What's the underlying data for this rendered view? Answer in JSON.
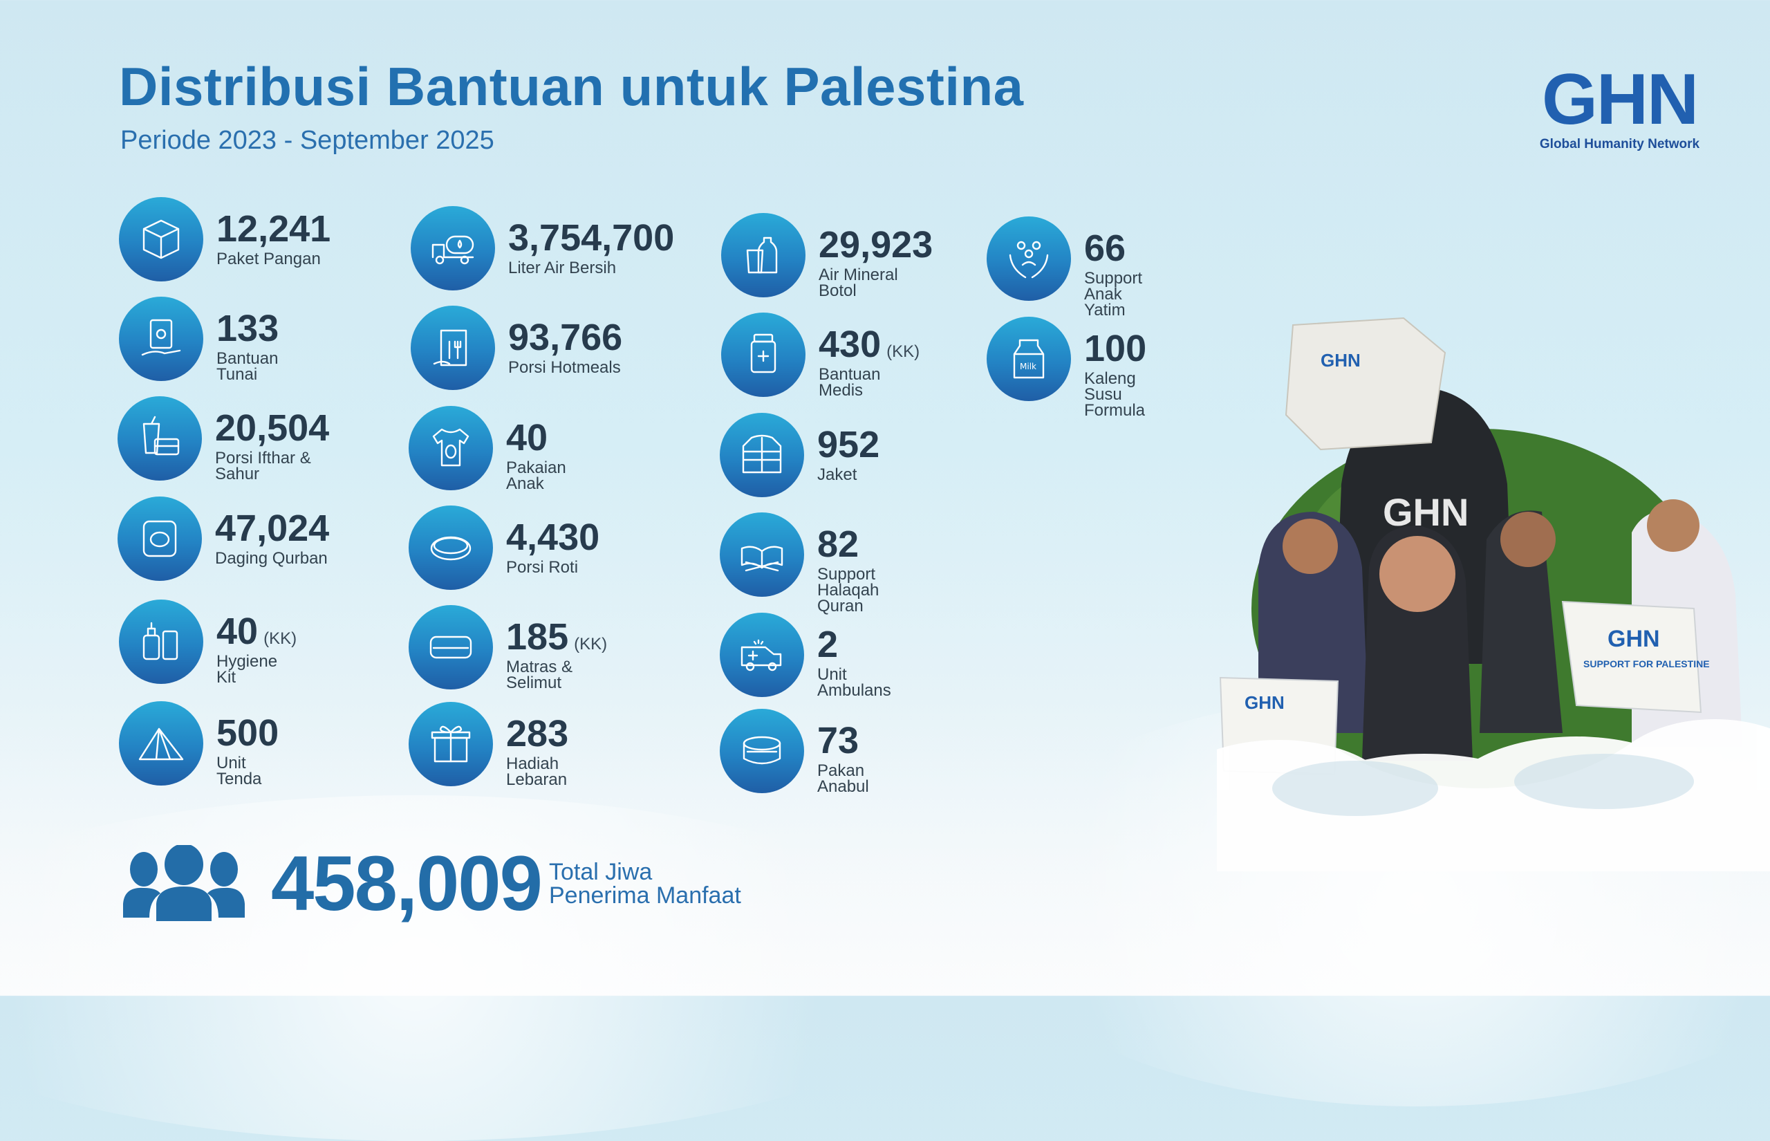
{
  "header": {
    "title": "Distribusi Bantuan untuk Palestina",
    "subtitle": "Periode 2023 - September 2025"
  },
  "logo": {
    "mark": "GHN",
    "name": "Global Humanity Network"
  },
  "colors": {
    "title": "#2270b0",
    "number": "#273b4d",
    "icon_top": "#2aaad8",
    "icon_bottom": "#1f5ea6"
  },
  "stats": [
    {
      "icon": "box-icon",
      "value": "12,241",
      "label": "Paket Pangan"
    },
    {
      "icon": "cash-hand-icon",
      "value": "133",
      "label": "Bantuan Tunai"
    },
    {
      "icon": "drink-food-box-icon",
      "value": "20,504",
      "label": "Porsi Ifthar & Sahur"
    },
    {
      "icon": "canned-meat-icon",
      "value": "47,024",
      "label": "Daging Qurban"
    },
    {
      "icon": "hygiene-bottles-icon",
      "value": "40",
      "unit": "(KK)",
      "label": "Hygiene Kit"
    },
    {
      "icon": "tent-icon",
      "value": "500",
      "label": "Unit Tenda"
    },
    {
      "icon": "water-truck-icon",
      "value": "3,754,700",
      "label": "Liter Air Bersih"
    },
    {
      "icon": "meal-bag-icon",
      "value": "93,766",
      "label": "Porsi Hotmeals"
    },
    {
      "icon": "baby-clothes-icon",
      "value": "40",
      "label": "Pakaian Anak"
    },
    {
      "icon": "bread-icon",
      "value": "4,430",
      "label": "Porsi Roti"
    },
    {
      "icon": "mattress-icon",
      "value": "185",
      "unit": "(KK)",
      "label": "Matras & Selimut"
    },
    {
      "icon": "gift-icon",
      "value": "283",
      "label": "Hadiah Lebaran"
    },
    {
      "icon": "water-bottle-icon",
      "value": "29,923",
      "label": "Air Mineral Botol"
    },
    {
      "icon": "medicine-icon",
      "value": "430",
      "unit": "(KK)",
      "label": "Bantuan Medis"
    },
    {
      "icon": "jacket-icon",
      "value": "952",
      "label": "Jaket"
    },
    {
      "icon": "quran-icon",
      "value": "82",
      "label": "Support Halaqah\nQuran"
    },
    {
      "icon": "ambulance-icon",
      "value": "2",
      "label": "Unit Ambulans"
    },
    {
      "icon": "pet-food-can-icon",
      "value": "73",
      "label": "Pakan Anabul"
    },
    {
      "icon": "orphan-care-icon",
      "value": "66",
      "label": "Support  Anak Yatim"
    },
    {
      "icon": "milk-icon",
      "value": "100",
      "label": "Kaleng Susu\nFormula"
    }
  ],
  "total": {
    "icon": "people-group-icon",
    "value": "458,009",
    "label_line1": "Total Jiwa",
    "label_line2": "Penerima Manfaat"
  },
  "photo": {
    "box_text": "GHN",
    "box_subtext": "SUPPORT FOR PALESTINE"
  }
}
